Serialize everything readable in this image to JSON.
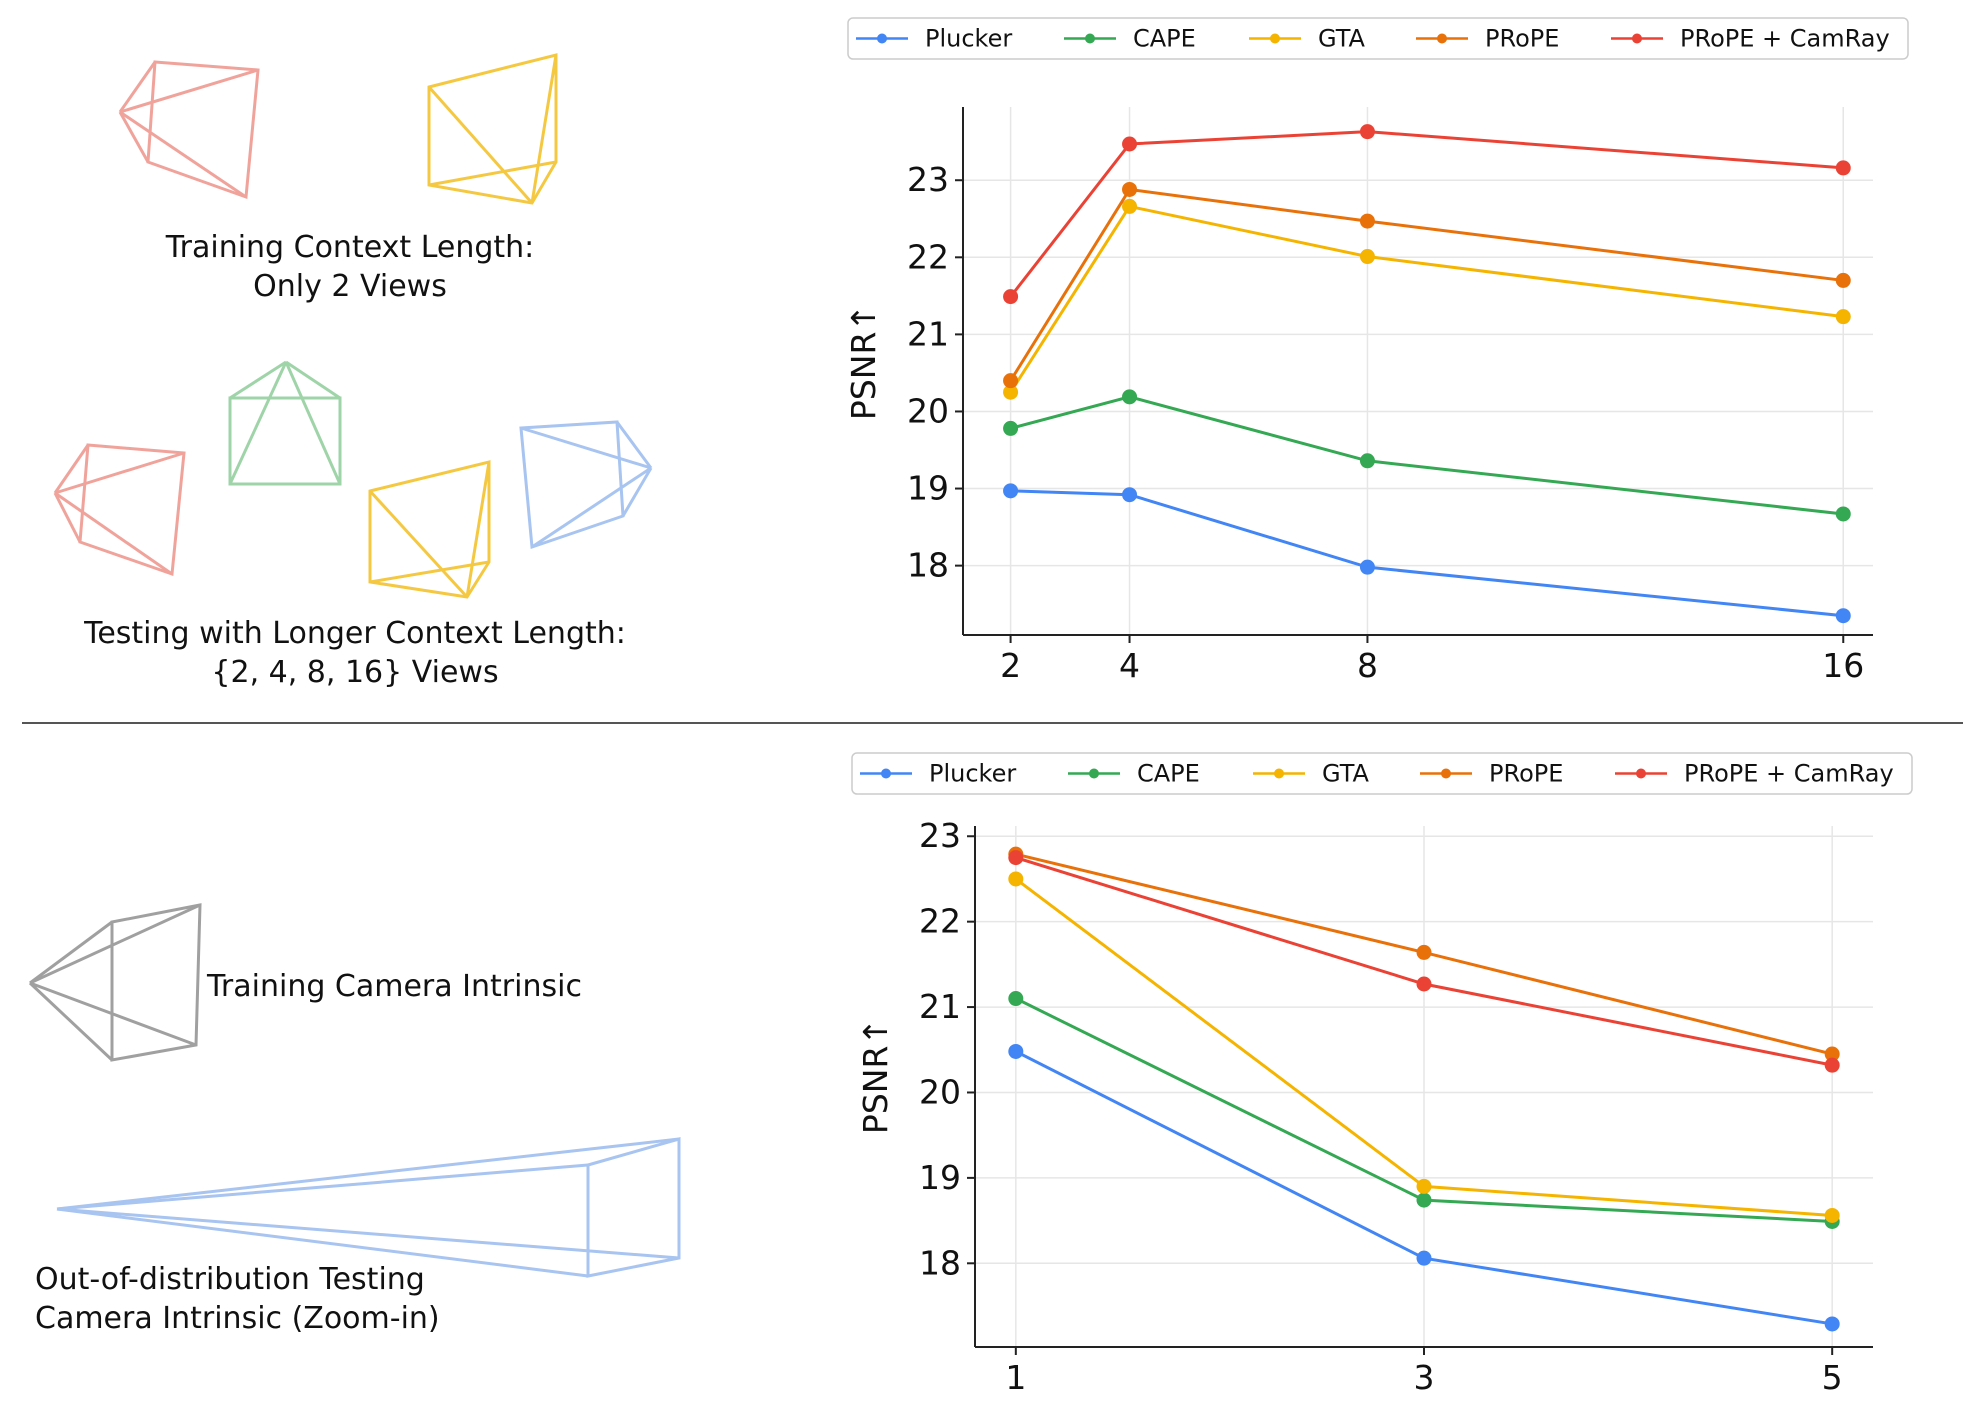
{
  "illustrations": {
    "top_caption_1": [
      "Training Context Length:",
      "Only 2 Views"
    ],
    "top_caption_2": [
      "Testing with Longer Context Length:",
      "{2, 4, 8, 16} Views"
    ],
    "bottom_caption_1": "Training Camera Intrinsic",
    "bottom_caption_2": [
      "Out-of-distribution Testing",
      "Camera Intrinsic (Zoom-in)"
    ],
    "camera_colors": {
      "red": "#f0a39b",
      "yellow": "#f5c842",
      "green": "#9fd4a8",
      "blue": "#a8c4f0",
      "gray": "#a0a0a0"
    }
  },
  "chart_data": [
    {
      "type": "line",
      "title": "",
      "xlabel": "",
      "ylabel": "PSNR↑",
      "x": [
        2,
        4,
        8,
        16
      ],
      "x_tick_labels": [
        "2",
        "4",
        "8",
        "16"
      ],
      "xlim": [
        1.2,
        16.5
      ],
      "ylim": [
        17.1,
        23.95
      ],
      "y_ticks": [
        18,
        19,
        20,
        21,
        22,
        23
      ],
      "grid": true,
      "legend_position": "top",
      "series": [
        {
          "name": "Plucker",
          "color": "#4285f4",
          "values": [
            18.97,
            18.92,
            17.98,
            17.35
          ]
        },
        {
          "name": "CAPE",
          "color": "#34a853",
          "values": [
            19.78,
            20.19,
            19.36,
            18.67
          ]
        },
        {
          "name": "GTA",
          "color": "#f4b400",
          "values": [
            20.25,
            22.66,
            22.01,
            21.23
          ]
        },
        {
          "name": "PRoPE",
          "color": "#e8710a",
          "values": [
            20.4,
            22.88,
            22.47,
            21.7
          ]
        },
        {
          "name": "PRoPE + CamRay",
          "color": "#ea4335",
          "values": [
            21.49,
            23.47,
            23.63,
            23.16
          ]
        }
      ]
    },
    {
      "type": "line",
      "title": "",
      "xlabel": "",
      "ylabel": "PSNR↑",
      "x": [
        1,
        3,
        5
      ],
      "x_tick_labels": [
        "1",
        "3",
        "5"
      ],
      "xlim": [
        0.8,
        5.2
      ],
      "ylim": [
        17.02,
        23.12
      ],
      "y_ticks": [
        18,
        19,
        20,
        21,
        22,
        23
      ],
      "grid": true,
      "legend_position": "top",
      "series": [
        {
          "name": "Plucker",
          "color": "#4285f4",
          "values": [
            20.48,
            18.06,
            17.29
          ]
        },
        {
          "name": "CAPE",
          "color": "#34a853",
          "values": [
            21.1,
            18.74,
            18.49
          ]
        },
        {
          "name": "GTA",
          "color": "#f4b400",
          "values": [
            22.5,
            18.9,
            18.56
          ]
        },
        {
          "name": "PRoPE",
          "color": "#e8710a",
          "values": [
            22.79,
            21.64,
            20.45
          ]
        },
        {
          "name": "PRoPE + CamRay",
          "color": "#ea4335",
          "values": [
            22.75,
            21.27,
            20.32
          ]
        }
      ]
    }
  ]
}
